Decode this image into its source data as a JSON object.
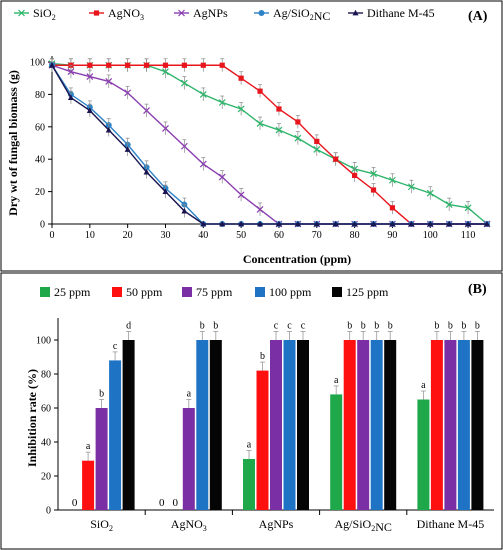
{
  "chart_data": [
    {
      "type": "line",
      "panel_label": "(A)",
      "xlabel": "Concentration (ppm)",
      "ylabel": "Dry wt of fungal biomass (g)",
      "xlim": [
        0,
        115
      ],
      "ylim": [
        0,
        100
      ],
      "xticks": [
        0,
        10,
        20,
        30,
        40,
        50,
        60,
        70,
        80,
        90,
        100,
        110
      ],
      "yticks": [
        0,
        20,
        40,
        60,
        80,
        100
      ],
      "grid": false,
      "legend": "top",
      "series": [
        {
          "name": "SiO₂",
          "color": "#2fb56b",
          "marker": "x",
          "points": [
            [
              0,
              99
            ],
            [
              5,
              98
            ],
            [
              10,
              98
            ],
            [
              15,
              98
            ],
            [
              20,
              98
            ],
            [
              25,
              98
            ],
            [
              30,
              94
            ],
            [
              35,
              87
            ],
            [
              40,
              80
            ],
            [
              45,
              75
            ],
            [
              50,
              71
            ],
            [
              55,
              62
            ],
            [
              60,
              58
            ],
            [
              65,
              53
            ],
            [
              70,
              46
            ],
            [
              75,
              40
            ],
            [
              80,
              34
            ],
            [
              85,
              31
            ],
            [
              90,
              27
            ],
            [
              95,
              23
            ],
            [
              100,
              19
            ],
            [
              105,
              12
            ],
            [
              110,
              10
            ],
            [
              115,
              0
            ]
          ]
        },
        {
          "name": "AgNO₃",
          "color": "#e8151c",
          "marker": "square",
          "points": [
            [
              0,
              98
            ],
            [
              5,
              98
            ],
            [
              10,
              98
            ],
            [
              15,
              98
            ],
            [
              20,
              98
            ],
            [
              25,
              98
            ],
            [
              30,
              98
            ],
            [
              35,
              98
            ],
            [
              40,
              98
            ],
            [
              45,
              98
            ],
            [
              50,
              90
            ],
            [
              55,
              82
            ],
            [
              60,
              71
            ],
            [
              65,
              63
            ],
            [
              70,
              51
            ],
            [
              75,
              40
            ],
            [
              80,
              30
            ],
            [
              85,
              21
            ],
            [
              90,
              10
            ],
            [
              95,
              0
            ],
            [
              100,
              0
            ],
            [
              105,
              0
            ],
            [
              110,
              0
            ],
            [
              115,
              0
            ]
          ]
        },
        {
          "name": "AgNPs",
          "color": "#8a3fb0",
          "marker": "x",
          "points": [
            [
              0,
              98
            ],
            [
              5,
              94
            ],
            [
              10,
              91
            ],
            [
              15,
              88
            ],
            [
              20,
              81
            ],
            [
              25,
              70
            ],
            [
              30,
              59
            ],
            [
              35,
              48
            ],
            [
              40,
              37
            ],
            [
              45,
              29
            ],
            [
              50,
              18
            ],
            [
              55,
              9
            ],
            [
              60,
              0
            ],
            [
              65,
              0
            ],
            [
              70,
              0
            ],
            [
              75,
              0
            ],
            [
              80,
              0
            ],
            [
              85,
              0
            ],
            [
              90,
              0
            ],
            [
              95,
              0
            ],
            [
              100,
              0
            ],
            [
              105,
              0
            ],
            [
              110,
              0
            ],
            [
              115,
              0
            ]
          ]
        },
        {
          "name": "Ag/SiO₂NC",
          "color": "#2e83c7",
          "marker": "circle",
          "points": [
            [
              0,
              98
            ],
            [
              5,
              80
            ],
            [
              10,
              72
            ],
            [
              15,
              61
            ],
            [
              20,
              49
            ],
            [
              25,
              35
            ],
            [
              30,
              22
            ],
            [
              35,
              12
            ],
            [
              40,
              0
            ],
            [
              45,
              0
            ],
            [
              50,
              0
            ],
            [
              55,
              0
            ],
            [
              60,
              0
            ],
            [
              65,
              0
            ],
            [
              70,
              0
            ],
            [
              75,
              0
            ],
            [
              80,
              0
            ],
            [
              85,
              0
            ],
            [
              90,
              0
            ],
            [
              95,
              0
            ],
            [
              100,
              0
            ],
            [
              105,
              0
            ],
            [
              110,
              0
            ],
            [
              115,
              0
            ]
          ]
        },
        {
          "name": "Dithane M-45",
          "color": "#1a1550",
          "marker": "triangle",
          "points": [
            [
              0,
              98
            ],
            [
              5,
              78
            ],
            [
              10,
              70
            ],
            [
              15,
              58
            ],
            [
              20,
              46
            ],
            [
              25,
              32
            ],
            [
              30,
              20
            ],
            [
              35,
              8
            ],
            [
              40,
              0
            ],
            [
              45,
              0
            ],
            [
              50,
              0
            ],
            [
              55,
              0
            ],
            [
              60,
              0
            ],
            [
              65,
              0
            ],
            [
              70,
              0
            ],
            [
              75,
              0
            ],
            [
              80,
              0
            ],
            [
              85,
              0
            ],
            [
              90,
              0
            ],
            [
              95,
              0
            ],
            [
              100,
              0
            ],
            [
              105,
              0
            ],
            [
              110,
              0
            ],
            [
              115,
              0
            ]
          ]
        }
      ]
    },
    {
      "type": "bar",
      "panel_label": "(B)",
      "xlabel": "",
      "ylabel": "Inhibition rate (%)",
      "ylim": [
        0,
        110
      ],
      "yticks": [
        0,
        20,
        40,
        60,
        80,
        100
      ],
      "grid": false,
      "legend": "top",
      "categories": [
        "SiO₂",
        "AgNO₃",
        "AgNPs",
        "Ag/SiO₂NC",
        "Dithane M-45"
      ],
      "series": [
        {
          "name": "25 ppm",
          "color": "#1ea84a",
          "values": [
            0,
            0,
            30,
            68,
            65
          ],
          "labels": [
            "0",
            "0",
            "a",
            "a",
            "a"
          ]
        },
        {
          "name": "50 ppm",
          "color": "#ff1010",
          "values": [
            29,
            0,
            82,
            100,
            100
          ],
          "labels": [
            "a",
            "0",
            "b",
            "b",
            "b"
          ]
        },
        {
          "name": "75 ppm",
          "color": "#7b2fa5",
          "values": [
            60,
            60,
            100,
            100,
            100
          ],
          "labels": [
            "b",
            "a",
            "c",
            "b",
            "b"
          ]
        },
        {
          "name": "100 ppm",
          "color": "#1f73c4",
          "values": [
            88,
            100,
            100,
            100,
            100
          ],
          "labels": [
            "c",
            "b",
            "c",
            "b",
            "b"
          ]
        },
        {
          "name": "125 ppm",
          "color": "#050505",
          "values": [
            100,
            100,
            100,
            100,
            100
          ],
          "labels": [
            "d",
            "b",
            "c",
            "b",
            "b"
          ]
        }
      ]
    }
  ]
}
